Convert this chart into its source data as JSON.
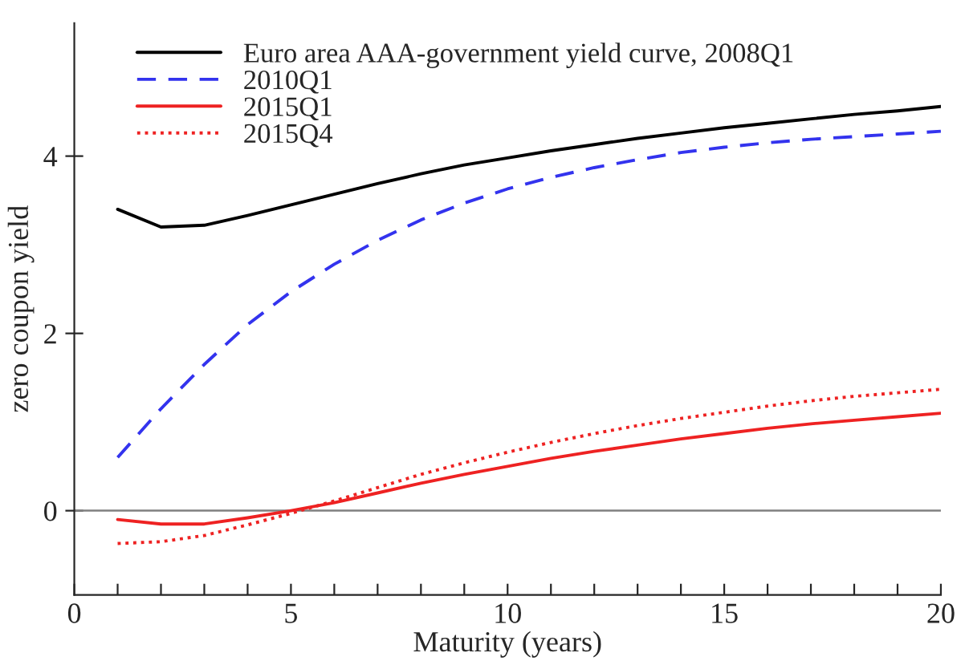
{
  "chart_data": {
    "type": "line",
    "xlabel": "Maturity (years)",
    "ylabel": "zero coupon yield",
    "x": [
      1,
      2,
      3,
      4,
      5,
      6,
      7,
      8,
      9,
      10,
      11,
      12,
      13,
      14,
      15,
      16,
      17,
      18,
      19,
      20
    ],
    "series": [
      {
        "name": "Euro area AAA-government yield curve, 2008Q1",
        "color": "#000000",
        "line_style": "solid",
        "values": [
          3.4,
          3.2,
          3.22,
          3.33,
          3.45,
          3.57,
          3.69,
          3.8,
          3.9,
          3.98,
          4.06,
          4.13,
          4.2,
          4.26,
          4.32,
          4.37,
          4.42,
          4.47,
          4.51,
          4.56
        ]
      },
      {
        "name": "2010Q1",
        "color": "#3333ee",
        "line_style": "dashed",
        "values": [
          0.6,
          1.15,
          1.65,
          2.1,
          2.47,
          2.78,
          3.05,
          3.28,
          3.47,
          3.63,
          3.76,
          3.87,
          3.96,
          4.04,
          4.1,
          4.15,
          4.19,
          4.22,
          4.25,
          4.28
        ]
      },
      {
        "name": "2015Q1",
        "color": "#ee2222",
        "line_style": "solid",
        "values": [
          -0.1,
          -0.15,
          -0.15,
          -0.08,
          0.0,
          0.09,
          0.2,
          0.31,
          0.41,
          0.5,
          0.59,
          0.67,
          0.74,
          0.81,
          0.87,
          0.93,
          0.98,
          1.02,
          1.06,
          1.1
        ]
      },
      {
        "name": "2015Q4",
        "color": "#ee2222",
        "line_style": "dotted",
        "values": [
          -0.37,
          -0.35,
          -0.28,
          -0.16,
          -0.03,
          0.11,
          0.26,
          0.41,
          0.54,
          0.66,
          0.77,
          0.87,
          0.96,
          1.04,
          1.11,
          1.18,
          1.24,
          1.29,
          1.33,
          1.37
        ]
      }
    ],
    "xlim": [
      0,
      20
    ],
    "ylim": [
      -0.95,
      5.5
    ],
    "xticks": [
      0,
      {
        "value": 1,
        "label": null
      },
      {
        "value": 2,
        "label": null
      },
      {
        "value": 3,
        "label": null
      },
      {
        "value": 4,
        "label": null
      },
      5,
      {
        "value": 6,
        "label": null
      },
      {
        "value": 7,
        "label": null
      },
      {
        "value": 8,
        "label": null
      },
      {
        "value": 9,
        "label": null
      },
      10,
      {
        "value": 11,
        "label": null
      },
      {
        "value": 12,
        "label": null
      },
      {
        "value": 13,
        "label": null
      },
      {
        "value": 14,
        "label": null
      },
      15,
      {
        "value": 16,
        "label": null
      },
      {
        "value": 17,
        "label": null
      },
      {
        "value": 18,
        "label": null
      },
      {
        "value": 19,
        "label": null
      },
      20
    ],
    "yticks": [
      0,
      2,
      4
    ],
    "ref_lines": [
      {
        "axis": "y",
        "value": 0,
        "color": "#808080",
        "line_style": "solid"
      }
    ],
    "legend": "top left",
    "grid": false,
    "marker": "none"
  }
}
